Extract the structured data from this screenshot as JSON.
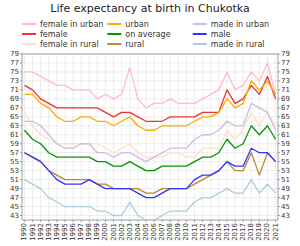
{
  "chart_data": {
    "type": "line",
    "title": "Life expectancy at birth in Chukotka",
    "x": [
      1990,
      1991,
      1992,
      1993,
      1994,
      1995,
      1996,
      1997,
      1998,
      1999,
      2000,
      2001,
      2002,
      2003,
      2004,
      2005,
      2006,
      2007,
      2008,
      2009,
      2010,
      2011,
      2012,
      2013,
      2014,
      2015,
      2016,
      2017,
      2018,
      2019,
      2020,
      2021
    ],
    "series": [
      {
        "name": "female in urban",
        "color": "#ffbbcc",
        "values": [
          75,
          75,
          74,
          73,
          72,
          72,
          71,
          71,
          71,
          69,
          70,
          69,
          70,
          76,
          69,
          67,
          68,
          68,
          69,
          68,
          68,
          68,
          69,
          70,
          71,
          75,
          71,
          72,
          75,
          73,
          77,
          70
        ]
      },
      {
        "name": "female",
        "color": "#ee3333",
        "values": [
          72,
          71,
          69,
          68,
          67,
          67,
          67,
          67,
          67,
          67,
          66,
          65,
          66,
          66,
          65,
          64,
          64,
          64,
          65,
          65,
          65,
          65,
          66,
          66,
          66,
          71,
          68,
          69,
          72,
          70,
          74,
          69
        ]
      },
      {
        "name": "female in rural",
        "color": "#ffddcc",
        "values": [
          66,
          63,
          61,
          60,
          59,
          59,
          59,
          59,
          59,
          59,
          58,
          57,
          58,
          59,
          57,
          56,
          56,
          56,
          57,
          57,
          56,
          56,
          58,
          58,
          58,
          62,
          60,
          62,
          66,
          63,
          66,
          63
        ]
      },
      {
        "name": "urban",
        "color": "#ffaa00",
        "values": [
          70,
          70,
          68,
          67,
          65,
          64,
          64,
          65,
          65,
          64,
          64,
          63,
          64,
          65,
          63,
          62,
          62,
          63,
          63,
          63,
          63,
          64,
          65,
          65,
          66,
          69,
          67,
          68,
          73,
          71,
          73,
          70
        ]
      },
      {
        "name": "on average",
        "color": "#009900",
        "values": [
          62,
          60,
          59,
          57,
          56,
          56,
          56,
          56,
          56,
          55,
          55,
          54,
          54,
          55,
          54,
          53,
          53,
          54,
          54,
          54,
          54,
          55,
          56,
          56,
          57,
          60,
          58,
          59,
          63,
          61,
          63,
          60
        ]
      },
      {
        "name": "rural",
        "color": "#bb8833",
        "values": [
          57,
          56,
          55,
          53,
          52,
          51,
          51,
          51,
          51,
          50,
          50,
          49,
          49,
          49,
          49,
          48,
          48,
          49,
          49,
          49,
          49,
          50,
          51,
          52,
          53,
          55,
          53,
          53,
          57,
          52,
          57,
          55
        ]
      },
      {
        "name": "made in urban",
        "color": "#ccbbdd",
        "values": [
          64,
          64,
          63,
          61,
          59,
          58,
          58,
          59,
          59,
          57,
          57,
          56,
          57,
          57,
          56,
          55,
          56,
          57,
          58,
          58,
          58,
          60,
          61,
          61,
          62,
          64,
          63,
          63,
          68,
          67,
          66,
          62
        ]
      },
      {
        "name": "male",
        "color": "#3333ff",
        "values": [
          57,
          56,
          55,
          53,
          51,
          50,
          50,
          50,
          51,
          50,
          49,
          49,
          49,
          49,
          48,
          47,
          47,
          48,
          49,
          49,
          49,
          51,
          52,
          52,
          53,
          55,
          54,
          54,
          58,
          57,
          57,
          55
        ]
      },
      {
        "name": "made in rural",
        "color": "#aaccdd",
        "values": [
          51,
          50,
          49,
          47,
          46,
          45,
          45,
          45,
          45,
          44,
          44,
          43,
          43,
          46,
          43,
          42,
          42,
          43,
          44,
          44,
          44,
          46,
          47,
          47,
          48,
          49,
          48,
          48,
          51,
          48,
          50,
          48
        ]
      }
    ],
    "xlim": [
      1989.7,
      2021.3
    ],
    "xticks": [
      1990,
      1991,
      1992,
      1993,
      1994,
      1995,
      1996,
      1997,
      1998,
      1999,
      2000,
      2001,
      2002,
      2003,
      2004,
      2005,
      2006,
      2007,
      2008,
      2009,
      2010,
      2011,
      2012,
      2013,
      2014,
      2015,
      2016,
      2017,
      2018,
      2019,
      2020,
      2021
    ],
    "ylim": [
      42,
      79
    ],
    "yticks": [
      43,
      45,
      47,
      49,
      51,
      53,
      55,
      57,
      59,
      61,
      63,
      65,
      67,
      69,
      71,
      73,
      75,
      77,
      79
    ],
    "y2lim": [
      42,
      79
    ],
    "y2ticks": [
      43,
      45,
      47,
      49,
      51,
      53,
      55,
      57,
      59,
      61,
      63,
      65,
      67,
      69,
      71,
      73,
      75,
      77,
      79
    ],
    "grid": true,
    "legend": "top"
  }
}
